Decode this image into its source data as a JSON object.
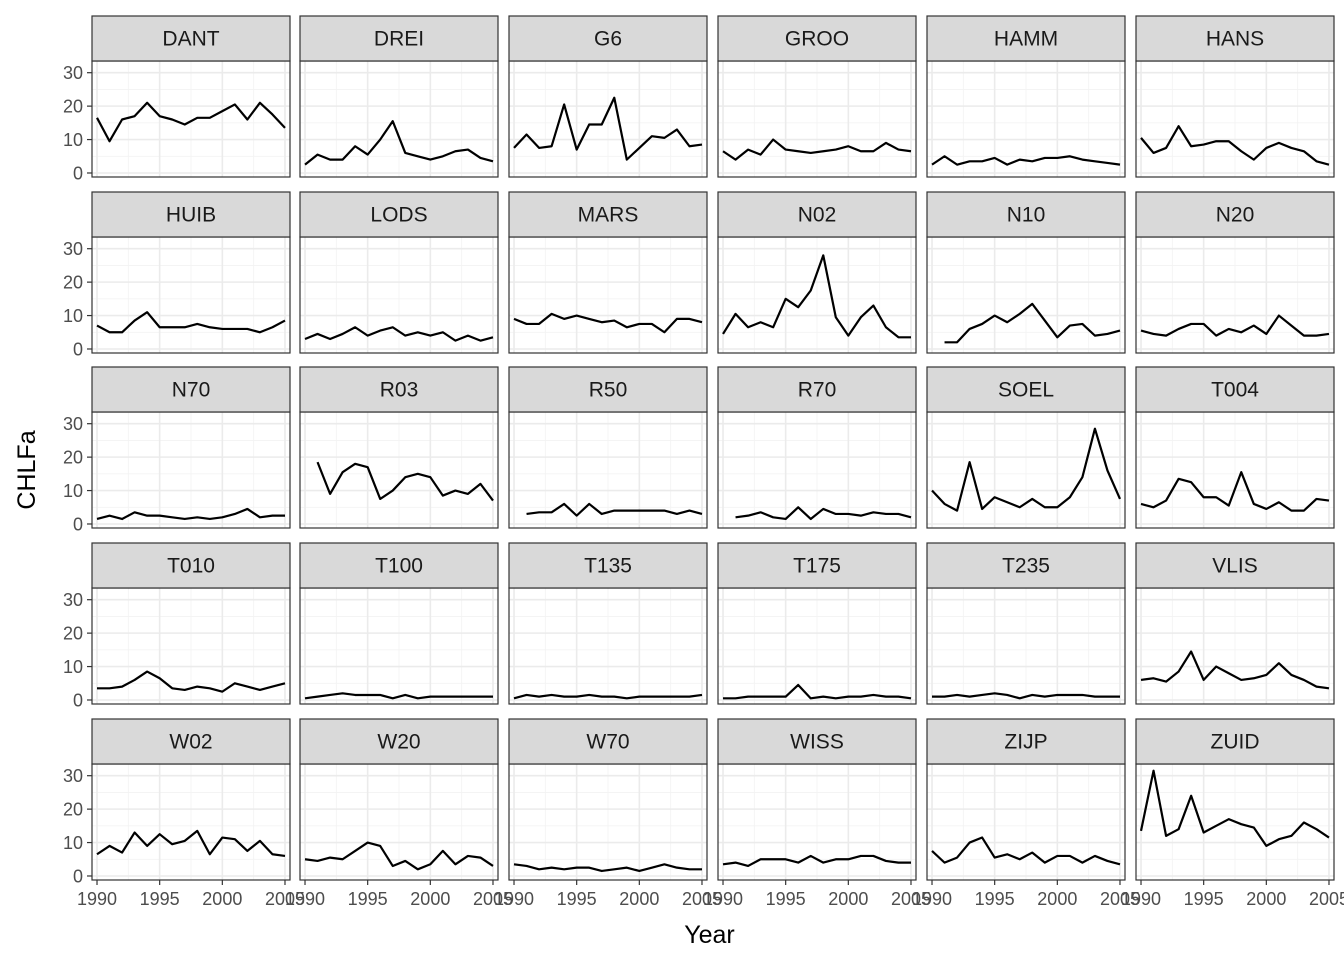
{
  "chart_data": {
    "type": "line",
    "layout": "facet_wrap",
    "facet_columns": 6,
    "xlabel": "Year",
    "ylabel": "CHLFa",
    "xlim": [
      1989.6,
      2005.4
    ],
    "ylim": [
      -1.2,
      33.5
    ],
    "x_ticks": [
      1990,
      1995,
      2000,
      2005
    ],
    "x_tick_labels": [
      "1990",
      "1995",
      "2000",
      "2005"
    ],
    "y_ticks": [
      0,
      10,
      20,
      30
    ],
    "y_tick_labels": [
      "0",
      "10",
      "20",
      "30"
    ],
    "grid": true,
    "theme": "bw",
    "years": [
      1990,
      1991,
      1992,
      1993,
      1994,
      1995,
      1996,
      1997,
      1998,
      1999,
      2000,
      2001,
      2002,
      2003,
      2004,
      2005
    ],
    "panels": [
      {
        "name": "DANT",
        "values": [
          16.5,
          9.5,
          16,
          17,
          21,
          17,
          16,
          14.5,
          16.5,
          16.5,
          18.5,
          20.5,
          16,
          21,
          17.5,
          13.5
        ]
      },
      {
        "name": "DREI",
        "values": [
          2.5,
          5.5,
          4,
          4,
          8,
          5.5,
          10,
          15.5,
          6,
          5,
          4,
          5,
          6.5,
          7,
          4.5,
          3.5
        ]
      },
      {
        "name": "G6",
        "values": [
          7.5,
          11.5,
          7.5,
          8,
          20.5,
          7,
          14.5,
          14.5,
          22.5,
          4,
          7.5,
          11,
          10.5,
          13,
          8,
          8.5
        ]
      },
      {
        "name": "GROO",
        "values": [
          6.5,
          4,
          7,
          5.5,
          10,
          7,
          6.5,
          6,
          6.5,
          7,
          8,
          6.5,
          6.5,
          9,
          7,
          6.5
        ]
      },
      {
        "name": "HAMM",
        "values": [
          2.5,
          5,
          2.5,
          3.5,
          3.5,
          4.5,
          2.5,
          4,
          3.5,
          4.5,
          4.5,
          5,
          4,
          3.5,
          3,
          2.5
        ]
      },
      {
        "name": "HANS",
        "values": [
          10.5,
          6,
          7.5,
          14,
          8,
          8.5,
          9.5,
          9.5,
          6.5,
          4,
          7.5,
          9,
          7.5,
          6.5,
          3.5,
          2.5
        ]
      },
      {
        "name": "HUIB",
        "values": [
          7,
          5,
          5,
          8.5,
          11,
          6.5,
          6.5,
          6.5,
          7.5,
          6.5,
          6,
          6,
          6,
          5,
          6.5,
          8.5
        ]
      },
      {
        "name": "LODS",
        "values": [
          3,
          4.5,
          3,
          4.5,
          6.5,
          4,
          5.5,
          6.5,
          4,
          5,
          4,
          5,
          2.5,
          4,
          2.5,
          3.5
        ]
      },
      {
        "name": "MARS",
        "values": [
          9,
          7.5,
          7.5,
          10.5,
          9,
          10,
          9,
          8,
          8.5,
          6.5,
          7.5,
          7.5,
          5,
          9,
          9,
          8
        ]
      },
      {
        "name": "N02",
        "values": [
          4.5,
          10.5,
          6.5,
          8,
          6.5,
          15,
          12.5,
          17.5,
          28,
          9.5,
          4,
          9.5,
          13,
          6.5,
          3.5,
          3.5
        ]
      },
      {
        "name": "N10",
        "values": [
          null,
          2,
          2,
          6,
          7.5,
          10,
          8,
          10.5,
          13.5,
          8.5,
          3.5,
          7,
          7.5,
          4,
          4.5,
          5.5
        ]
      },
      {
        "name": "N20",
        "values": [
          5.5,
          4.5,
          4,
          6,
          7.5,
          7.5,
          4,
          6,
          5,
          7,
          4.5,
          10,
          7,
          4,
          4,
          4.5
        ]
      },
      {
        "name": "N70",
        "values": [
          1.5,
          2.5,
          1.5,
          3.5,
          2.5,
          2.5,
          2,
          1.5,
          2,
          1.5,
          2,
          3,
          4.5,
          2,
          2.5,
          2.5
        ]
      },
      {
        "name": "R03",
        "values": [
          null,
          18.5,
          9,
          15.5,
          18,
          17,
          7.5,
          10,
          14,
          15,
          14,
          8.5,
          10,
          9,
          12,
          7
        ]
      },
      {
        "name": "R50",
        "values": [
          null,
          3,
          3.5,
          3.5,
          6,
          2.5,
          6,
          3,
          4,
          4,
          4,
          4,
          4,
          3,
          4,
          3
        ]
      },
      {
        "name": "R70",
        "values": [
          null,
          2,
          2.5,
          3.5,
          2,
          1.5,
          5,
          1.5,
          4.5,
          3,
          3,
          2.5,
          3.5,
          3,
          3,
          2
        ]
      },
      {
        "name": "SOEL",
        "values": [
          10,
          6,
          4,
          18.5,
          4.5,
          8,
          6.5,
          5,
          7.5,
          5,
          5,
          8,
          14,
          28.5,
          16,
          7.5
        ]
      },
      {
        "name": "T004",
        "values": [
          6,
          5,
          7,
          13.5,
          12.5,
          8,
          8,
          5.5,
          15.5,
          6,
          4.5,
          6.5,
          4,
          4,
          7.5,
          7
        ]
      },
      {
        "name": "T010",
        "values": [
          3.5,
          3.5,
          4,
          6,
          8.5,
          6.5,
          3.5,
          3,
          4,
          3.5,
          2.5,
          5,
          4,
          3,
          4,
          5
        ]
      },
      {
        "name": "T100",
        "values": [
          0.5,
          1,
          1.5,
          2,
          1.5,
          1.5,
          1.5,
          0.5,
          1.5,
          0.5,
          1,
          1,
          1,
          1,
          1,
          1
        ]
      },
      {
        "name": "T135",
        "values": [
          0.5,
          1.5,
          1,
          1.5,
          1,
          1,
          1.5,
          1,
          1,
          0.5,
          1,
          1,
          1,
          1,
          1,
          1.5
        ]
      },
      {
        "name": "T175",
        "values": [
          0.5,
          0.5,
          1,
          1,
          1,
          1,
          4.5,
          0.5,
          1,
          0.5,
          1,
          1,
          1.5,
          1,
          1,
          0.5
        ]
      },
      {
        "name": "T235",
        "values": [
          1,
          1,
          1.5,
          1,
          1.5,
          2,
          1.5,
          0.5,
          1.5,
          1,
          1.5,
          1.5,
          1.5,
          1,
          1,
          1
        ]
      },
      {
        "name": "VLIS",
        "values": [
          6,
          6.5,
          5.5,
          8.5,
          14.5,
          6,
          10,
          8,
          6,
          6.5,
          7.5,
          11,
          7.5,
          6,
          4,
          3.5
        ]
      },
      {
        "name": "W02",
        "values": [
          6.5,
          9,
          7,
          13,
          9,
          12.5,
          9.5,
          10.5,
          13.5,
          6.5,
          11.5,
          11,
          7.5,
          10.5,
          6.5,
          6
        ]
      },
      {
        "name": "W20",
        "values": [
          5,
          4.5,
          5.5,
          5,
          7.5,
          10,
          9,
          3,
          4.5,
          2,
          3.5,
          7.5,
          3.5,
          6,
          5.5,
          3
        ]
      },
      {
        "name": "W70",
        "values": [
          3.5,
          3,
          2,
          2.5,
          2,
          2.5,
          2.5,
          1.5,
          2,
          2.5,
          1.5,
          2.5,
          3.5,
          2.5,
          2,
          2
        ]
      },
      {
        "name": "WISS",
        "values": [
          3.5,
          4,
          3,
          5,
          5,
          5,
          4,
          6,
          4,
          5,
          5,
          6,
          6,
          4.5,
          4,
          4
        ]
      },
      {
        "name": "ZIJP",
        "values": [
          7.5,
          4,
          5.5,
          10,
          11.5,
          5.5,
          6.5,
          5,
          7,
          4,
          6,
          6,
          4,
          6,
          4.5,
          3.5
        ]
      },
      {
        "name": "ZUID",
        "values": [
          13.5,
          31.5,
          12,
          14,
          24,
          13,
          15,
          17,
          15.5,
          14.5,
          9,
          11,
          12,
          16,
          14,
          11.5
        ]
      }
    ]
  }
}
